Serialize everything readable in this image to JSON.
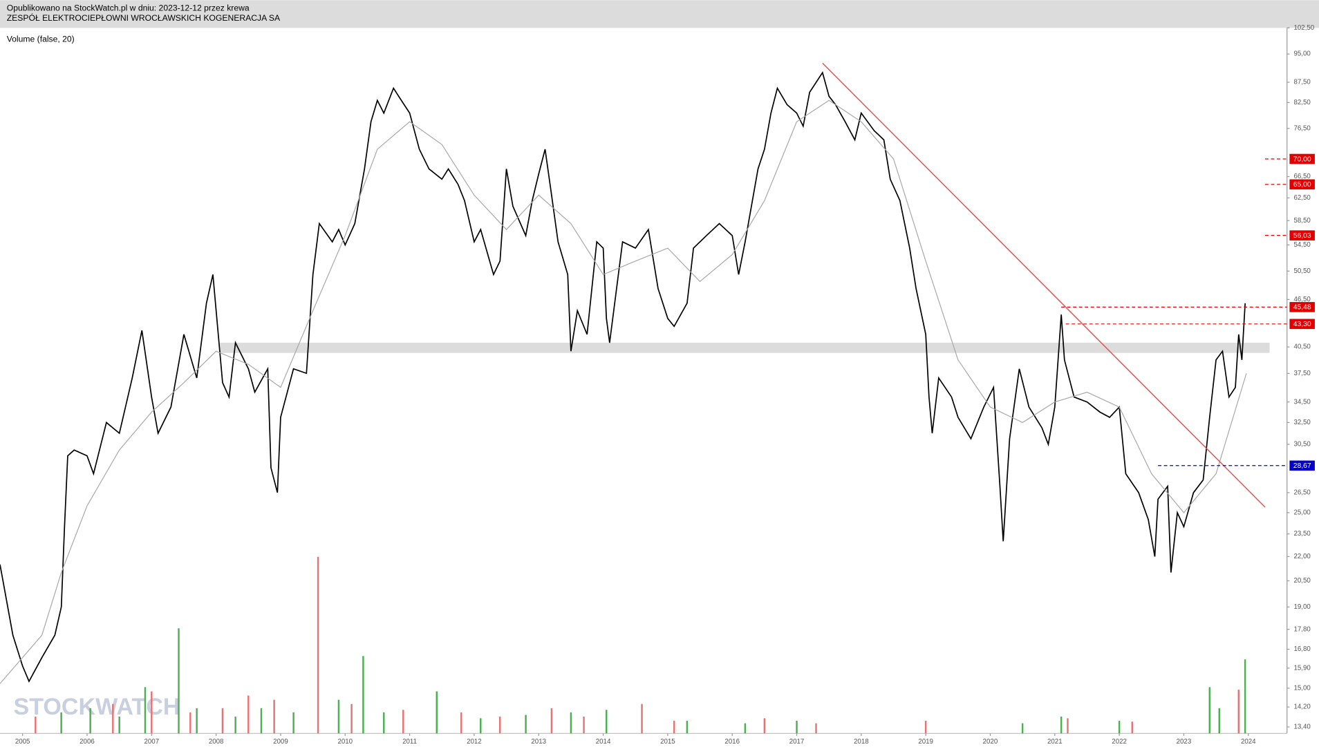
{
  "header": {
    "published": "Opublikowano na StockWatch.pl w dniu: 2023-12-12 przez krewa",
    "company": "ZESPÓŁ ELEKTROCIEPŁOWNI WROCŁAWSKICH KOGENERACJA SA"
  },
  "chart_data": {
    "type": "line",
    "indicator": "Volume (false, 20)",
    "watermark": "STOCKWATCH",
    "log_scale": true,
    "xlim": [
      2004.65,
      2024.6
    ],
    "xticks": [
      2005,
      2006,
      2007,
      2008,
      2009,
      2010,
      2011,
      2012,
      2013,
      2014,
      2015,
      2016,
      2017,
      2018,
      2019,
      2020,
      2021,
      2022,
      2023,
      2024
    ],
    "ylim": [
      13.15,
      102.5
    ],
    "yticks": [
      {
        "value": 102.5,
        "label": "102,50"
      },
      {
        "value": 95,
        "label": "95,00"
      },
      {
        "value": 87.5,
        "label": "87,50"
      },
      {
        "value": 82.5,
        "label": "82,50"
      },
      {
        "value": 76.5,
        "label": "76,50"
      },
      {
        "value": 66.5,
        "label": "66,50"
      },
      {
        "value": 62.5,
        "label": "62,50"
      },
      {
        "value": 58.5,
        "label": "58,50"
      },
      {
        "value": 54.5,
        "label": "54,50"
      },
      {
        "value": 50.5,
        "label": "50,50"
      },
      {
        "value": 46.5,
        "label": "46,50"
      },
      {
        "value": 40.5,
        "label": "40,50"
      },
      {
        "value": 37.5,
        "label": "37,50"
      },
      {
        "value": 34.5,
        "label": "34,50"
      },
      {
        "value": 32.5,
        "label": "32,50"
      },
      {
        "value": 30.5,
        "label": "30,50"
      },
      {
        "value": 26.5,
        "label": "26,50"
      },
      {
        "value": 25,
        "label": "25,00"
      },
      {
        "value": 23.5,
        "label": "23,50"
      },
      {
        "value": 22,
        "label": "22,00"
      },
      {
        "value": 20.5,
        "label": "20,50"
      },
      {
        "value": 19,
        "label": "19,00"
      },
      {
        "value": 17.8,
        "label": "17,80"
      },
      {
        "value": 16.8,
        "label": "16,80"
      },
      {
        "value": 15.9,
        "label": "15,90"
      },
      {
        "value": 15,
        "label": "15,00"
      },
      {
        "value": 14.2,
        "label": "14,20"
      },
      {
        "value": 13.4,
        "label": "13,40"
      }
    ],
    "series": [
      {
        "color": "#000000",
        "x": [
          2004.65,
          2004.85,
          2005.0,
          2005.1,
          2005.3,
          2005.5,
          2005.6,
          2005.65,
          2005.7,
          2005.8,
          2006.0,
          2006.1,
          2006.3,
          2006.5,
          2006.7,
          2006.85,
          2007.0,
          2007.1,
          2007.3,
          2007.5,
          2007.7,
          2007.85,
          2007.95,
          2008.1,
          2008.2,
          2008.3,
          2008.5,
          2008.6,
          2008.8,
          2008.85,
          2008.95,
          2009.0,
          2009.2,
          2009.4,
          2009.5,
          2009.6,
          2009.8,
          2009.9,
          2010.0,
          2010.15,
          2010.3,
          2010.4,
          2010.5,
          2010.6,
          2010.75,
          2010.85,
          2011.0,
          2011.15,
          2011.3,
          2011.5,
          2011.6,
          2011.75,
          2011.85,
          2012.0,
          2012.1,
          2012.3,
          2012.4,
          2012.5,
          2012.6,
          2012.8,
          2012.9,
          2013.0,
          2013.1,
          2013.2,
          2013.3,
          2013.45,
          2013.5,
          2013.6,
          2013.75,
          2013.9,
          2014.0,
          2014.05,
          2014.1,
          2014.3,
          2014.5,
          2014.7,
          2014.85,
          2015.0,
          2015.1,
          2015.3,
          2015.4,
          2015.6,
          2015.8,
          2016.0,
          2016.1,
          2016.2,
          2016.4,
          2016.5,
          2016.6,
          2016.7,
          2016.85,
          2017.0,
          2017.1,
          2017.2,
          2017.4,
          2017.5,
          2017.6,
          2017.75,
          2017.9,
          2018.0,
          2018.2,
          2018.35,
          2018.45,
          2018.6,
          2018.75,
          2018.85,
          2019.0,
          2019.05,
          2019.1,
          2019.2,
          2019.4,
          2019.5,
          2019.7,
          2019.9,
          2020.05,
          2020.15,
          2020.2,
          2020.3,
          2020.45,
          2020.6,
          2020.8,
          2020.9,
          2021.0,
          2021.1,
          2021.15,
          2021.3,
          2021.5,
          2021.7,
          2021.85,
          2022.0,
          2022.1,
          2022.3,
          2022.45,
          2022.55,
          2022.6,
          2022.75,
          2022.8,
          2022.9,
          2023.0,
          2023.15,
          2023.3,
          2023.4,
          2023.5,
          2023.6,
          2023.7,
          2023.8,
          2023.85,
          2023.9,
          2023.95
        ],
        "values": [
          21.5,
          17.5,
          16.0,
          15.3,
          16.4,
          17.5,
          19.0,
          24.0,
          29.5,
          30.0,
          29.5,
          28.0,
          32.5,
          31.5,
          37.0,
          42.5,
          35.0,
          31.5,
          34.0,
          42.0,
          37.0,
          46.0,
          50.0,
          36.5,
          35.0,
          41.0,
          38.0,
          35.5,
          38.0,
          28.5,
          26.5,
          33.0,
          38.0,
          37.5,
          50.0,
          58.0,
          55.0,
          57.0,
          54.5,
          58.0,
          68.0,
          78.0,
          83.0,
          80.0,
          86.0,
          83.5,
          80.0,
          72.0,
          68.0,
          66.0,
          68.0,
          65.0,
          62.0,
          55.0,
          57.0,
          50.0,
          52.0,
          68.0,
          61.0,
          56.0,
          62.0,
          67.0,
          72.0,
          63.0,
          55.0,
          50.0,
          40.0,
          45.0,
          42.0,
          55.0,
          54.0,
          44.0,
          41.0,
          55.0,
          54.0,
          57.0,
          48.0,
          44.0,
          43.0,
          46.0,
          54.0,
          56.0,
          58.0,
          56.0,
          50.0,
          55.0,
          68.0,
          72.0,
          80.0,
          86.0,
          82.0,
          80.0,
          77.0,
          85.0,
          90.0,
          84.0,
          82.0,
          78.0,
          74.0,
          80.0,
          76.0,
          74.0,
          66.0,
          62.0,
          54.0,
          48.0,
          42.0,
          35.0,
          31.5,
          37.0,
          35.0,
          33.0,
          31.0,
          34.0,
          36.0,
          27.0,
          23.0,
          31.0,
          38.0,
          34.0,
          32.0,
          30.5,
          34.0,
          44.5,
          39.0,
          35.0,
          34.5,
          33.5,
          33.0,
          34.0,
          28.0,
          26.5,
          24.5,
          22.0,
          26.0,
          27.0,
          21.0,
          25.0,
          24.0,
          26.5,
          27.5,
          33.0,
          39.0,
          40.0,
          35.0,
          36.0,
          42.0,
          39.0,
          46.0
        ]
      },
      {
        "color": "#a8a8a8",
        "x": [
          2004.65,
          2005.3,
          2005.6,
          2006.0,
          2006.5,
          2007.0,
          2007.5,
          2008.0,
          2008.5,
          2009.0,
          2009.5,
          2010.0,
          2010.5,
          2011.0,
          2011.5,
          2012.0,
          2012.5,
          2013.0,
          2013.5,
          2014.0,
          2014.5,
          2015.0,
          2015.5,
          2016.0,
          2016.5,
          2017.0,
          2017.5,
          2018.0,
          2018.5,
          2019.0,
          2019.5,
          2020.0,
          2020.5,
          2021.0,
          2021.5,
          2022.0,
          2022.5,
          2023.0,
          2023.5,
          2023.97
        ],
        "values": [
          15.2,
          17.5,
          21.0,
          25.5,
          30.0,
          33.5,
          36.5,
          40.0,
          38.5,
          36.0,
          45.0,
          56.0,
          72.0,
          78.0,
          73.0,
          63.0,
          57.0,
          63.0,
          58.0,
          50.0,
          52.0,
          54.0,
          49.0,
          53.0,
          62.0,
          78.0,
          83.0,
          78.0,
          70.0,
          52.0,
          39.0,
          34.0,
          32.5,
          34.5,
          35.5,
          34.0,
          28.0,
          25.0,
          28.0,
          37.5
        ]
      }
    ],
    "trendline": {
      "x": [
        2017.4,
        2024.26
      ],
      "values": [
        92.5,
        25.4
      ],
      "color": "#e05050"
    },
    "band": {
      "x": [
        2008.06,
        2024.33
      ],
      "values": [
        39.8,
        41.0
      ],
      "color": "#dcdcdc"
    },
    "levels": [
      {
        "value": 70.0,
        "label": "70,00",
        "color": "#e00000",
        "from": 2024.26
      },
      {
        "value": 65.0,
        "label": "65,00",
        "color": "#e00000",
        "from": 2024.26
      },
      {
        "value": 56.03,
        "label": "56,03",
        "color": "#e00000",
        "from": 2024.26
      },
      {
        "value": 45.48,
        "label": "45,48",
        "color": "#e00000",
        "from": 2021.1
      },
      {
        "value": 43.3,
        "label": "43,30",
        "color": "#e00000",
        "from": 2021.17
      },
      {
        "value": 28.67,
        "label": "28,67",
        "color": "#0000cc",
        "from": 2022.6
      }
    ],
    "volume": [
      {
        "color": "#4caf50",
        "x": [
          2005.6,
          2006.05,
          2006.5,
          2006.9,
          2007.42,
          2007.7,
          2008.3,
          2008.7,
          2009.2,
          2009.9,
          2010.28,
          2010.6,
          2011.42,
          2012.1,
          2012.8,
          2013.5,
          2014.05,
          2015.3,
          2016.2,
          2017.0,
          2020.5,
          2021.1,
          2022.0,
          2023.4,
          2023.55,
          2023.95
        ],
        "values": [
          25,
          30,
          20,
          55,
          125,
          30,
          20,
          30,
          25,
          40,
          92,
          25,
          50,
          18,
          22,
          25,
          28,
          15,
          12,
          15,
          12,
          20,
          15,
          55,
          30,
          88
        ]
      },
      {
        "color": "#e57373",
        "x": [
          2005.2,
          2006.4,
          2007.0,
          2007.6,
          2008.1,
          2008.5,
          2008.9,
          2009.58,
          2010.1,
          2010.9,
          2011.8,
          2012.4,
          2013.2,
          2013.7,
          2014.6,
          2015.1,
          2016.5,
          2017.3,
          2019.0,
          2021.2,
          2022.2,
          2023.85
        ],
        "values": [
          20,
          35,
          50,
          25,
          30,
          45,
          40,
          210,
          35,
          28,
          25,
          20,
          30,
          20,
          35,
          15,
          18,
          12,
          15,
          18,
          14,
          52
        ]
      }
    ]
  }
}
